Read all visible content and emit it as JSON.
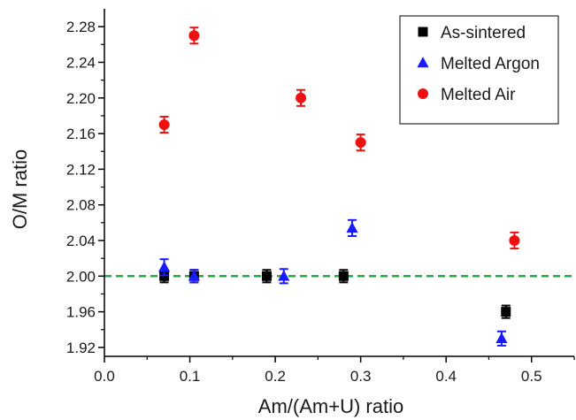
{
  "chart_data": {
    "type": "scatter",
    "xlabel": "Am/(Am+U) ratio",
    "ylabel": "O/M ratio",
    "xlim": [
      0.0,
      0.55
    ],
    "ylim": [
      1.91,
      2.3
    ],
    "x_ticks": [
      0.0,
      0.1,
      0.2,
      0.3,
      0.4,
      0.5
    ],
    "x_tick_labels": [
      "0.0",
      "0.1",
      "0.2",
      "0.3",
      "0.4",
      "0.5"
    ],
    "y_ticks": [
      1.92,
      1.96,
      2.0,
      2.04,
      2.08,
      2.12,
      2.16,
      2.2,
      2.24,
      2.28
    ],
    "y_tick_labels": [
      "1.92",
      "1.96",
      "2.00",
      "2.04",
      "2.08",
      "2.12",
      "2.16",
      "2.20",
      "2.24",
      "2.28"
    ],
    "grid": false,
    "legend_position": "top-right",
    "reference_line": {
      "y": 2.0,
      "style": "dashed",
      "color": "#22aa44"
    },
    "series": [
      {
        "name": "As-sintered",
        "marker": "square",
        "color": "#000000",
        "x": [
          0.07,
          0.105,
          0.19,
          0.28,
          0.47
        ],
        "y": [
          2.0,
          2.0,
          2.0,
          2.0,
          1.96
        ],
        "err": [
          0.007,
          0.007,
          0.007,
          0.007,
          0.007
        ]
      },
      {
        "name": "Melted Argon",
        "marker": "triangle",
        "color": "#1a1aff",
        "x": [
          0.07,
          0.105,
          0.21,
          0.29,
          0.465
        ],
        "y": [
          2.01,
          2.0,
          2.0,
          2.054,
          1.93
        ],
        "err": [
          0.009,
          0.007,
          0.008,
          0.009,
          0.008
        ]
      },
      {
        "name": "Melted Air",
        "marker": "circle",
        "color": "#ee1111",
        "x": [
          0.07,
          0.105,
          0.23,
          0.3,
          0.48
        ],
        "y": [
          2.17,
          2.27,
          2.2,
          2.15,
          2.04
        ],
        "err": [
          0.009,
          0.009,
          0.009,
          0.009,
          0.009
        ]
      }
    ]
  }
}
